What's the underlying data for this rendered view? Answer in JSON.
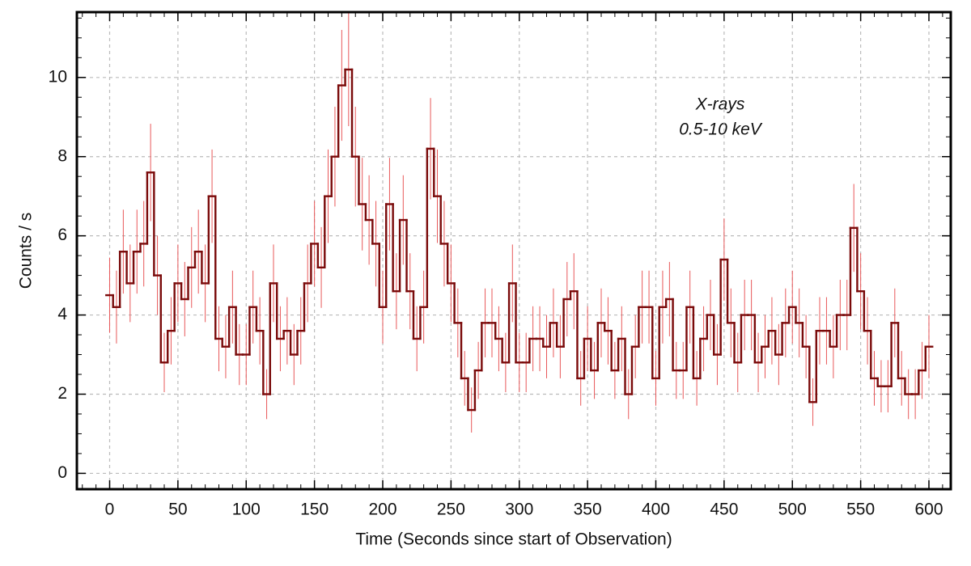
{
  "chart_data": {
    "type": "step",
    "xlabel": "Time (Seconds since start of Observation)",
    "ylabel": "Counts / s",
    "annotations": [
      "X-rays",
      "0.5-10 keV"
    ],
    "x": [
      0,
      5,
      10,
      15,
      20,
      25,
      30,
      35,
      40,
      45,
      50,
      55,
      60,
      65,
      70,
      75,
      80,
      85,
      90,
      95,
      100,
      105,
      110,
      115,
      120,
      125,
      130,
      135,
      140,
      145,
      150,
      155,
      160,
      165,
      170,
      175,
      180,
      185,
      190,
      195,
      200,
      205,
      210,
      215,
      220,
      225,
      230,
      235,
      240,
      245,
      250,
      255,
      260,
      265,
      270,
      275,
      280,
      285,
      290,
      295,
      300,
      305,
      310,
      315,
      320,
      325,
      330,
      335,
      340,
      345,
      350,
      355,
      360,
      365,
      370,
      375,
      380,
      385,
      390,
      395,
      400,
      405,
      410,
      415,
      420,
      425,
      430,
      435,
      440,
      445,
      450,
      455,
      460,
      465,
      470,
      475,
      480,
      485,
      490,
      495,
      500,
      505,
      510,
      515,
      520,
      525,
      530,
      535,
      540,
      545,
      550,
      555,
      560,
      565,
      570,
      575,
      580,
      585,
      590,
      595,
      600
    ],
    "values": [
      4.5,
      4.2,
      5.6,
      4.8,
      5.6,
      5.8,
      7.6,
      5,
      2.8,
      3.6,
      4.8,
      4.4,
      5.2,
      5.6,
      4.8,
      7,
      3.4,
      3.2,
      4.2,
      3,
      3,
      4.2,
      3.6,
      2,
      4.8,
      3.4,
      3.6,
      3,
      3.6,
      4.8,
      5.8,
      5.2,
      7,
      8,
      9.8,
      10.2,
      8,
      6.8,
      6.4,
      5.8,
      4.2,
      6.8,
      4.6,
      6.4,
      4.6,
      3.4,
      4.2,
      8.2,
      7,
      5.8,
      4.8,
      3.8,
      2.4,
      1.6,
      2.6,
      3.8,
      3.8,
      3.4,
      2.8,
      4.8,
      2.8,
      2.8,
      3.4,
      3.4,
      3.2,
      3.8,
      3.2,
      4.4,
      4.6,
      2.4,
      3.4,
      2.6,
      3.8,
      3.6,
      2.6,
      3.4,
      2,
      3.2,
      4.2,
      4.2,
      2.4,
      4.2,
      4.4,
      2.6,
      2.6,
      4.2,
      2.4,
      3.4,
      4,
      3,
      5.4,
      3.8,
      2.8,
      4,
      4,
      2.8,
      3.2,
      3.6,
      3,
      3.8,
      4.2,
      3.8,
      3.2,
      1.8,
      3.6,
      3.6,
      3.2,
      4,
      4,
      6.2,
      4.6,
      3.6,
      2.4,
      2.2,
      2.2,
      3.8,
      2.4,
      2,
      2,
      2.6,
      3.2
    ],
    "errors": [
      0.95,
      0.92,
      1.06,
      0.98,
      1.06,
      1.08,
      1.23,
      1,
      0.75,
      0.85,
      0.98,
      0.94,
      1.02,
      1.06,
      0.98,
      1.18,
      0.82,
      0.8,
      0.92,
      0.77,
      0.77,
      0.92,
      0.85,
      0.63,
      0.98,
      0.82,
      0.85,
      0.77,
      0.85,
      0.98,
      1.08,
      1.02,
      1.18,
      1.26,
      1.4,
      1.43,
      1.26,
      1.17,
      1.13,
      1.08,
      0.92,
      1.17,
      0.96,
      1.13,
      0.96,
      0.82,
      0.92,
      1.28,
      1.18,
      1.08,
      0.98,
      0.87,
      0.69,
      0.57,
      0.72,
      0.87,
      0.87,
      0.82,
      0.75,
      0.98,
      0.75,
      0.75,
      0.82,
      0.82,
      0.8,
      0.87,
      0.8,
      0.94,
      0.96,
      0.69,
      0.82,
      0.72,
      0.87,
      0.85,
      0.72,
      0.82,
      0.63,
      0.8,
      0.92,
      0.92,
      0.69,
      0.92,
      0.94,
      0.72,
      0.72,
      0.92,
      0.69,
      0.82,
      0.89,
      0.77,
      1.04,
      0.87,
      0.75,
      0.89,
      0.89,
      0.75,
      0.8,
      0.85,
      0.77,
      0.87,
      0.92,
      0.87,
      0.8,
      0.6,
      0.85,
      0.85,
      0.8,
      0.89,
      0.89,
      1.11,
      0.96,
      0.85,
      0.69,
      0.66,
      0.66,
      0.87,
      0.69,
      0.63,
      0.63,
      0.72,
      0.8
    ],
    "color": "#7a0a0a",
    "error_color": "#e8585a",
    "xlim": [
      -24,
      616
    ],
    "ylim": [
      -0.4,
      11.65
    ],
    "xticks": [
      0,
      50,
      100,
      150,
      200,
      250,
      300,
      350,
      400,
      450,
      500,
      550,
      600
    ],
    "yticks": [
      0,
      2,
      4,
      6,
      8,
      10
    ],
    "grid": true
  }
}
